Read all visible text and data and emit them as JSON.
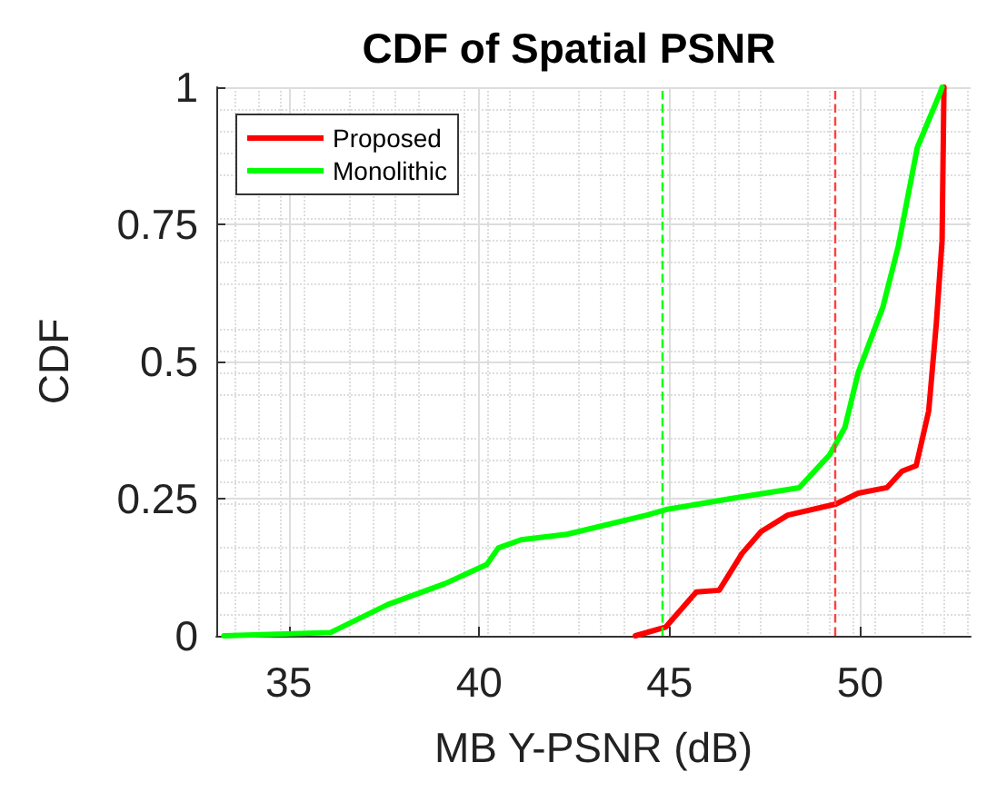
{
  "chart_data": {
    "type": "line",
    "title": "CDF of Spatial PSNR",
    "xlabel": "MB Y-PSNR (dB)",
    "ylabel": "CDF",
    "xlim": [
      33.1,
      52.9
    ],
    "ylim": [
      0,
      1
    ],
    "xticks": [
      35,
      40,
      45,
      50
    ],
    "yticks": [
      0,
      0.25,
      0.5,
      0.75,
      1
    ],
    "grid": true,
    "legend": "top left",
    "line_style": "solid",
    "series": [
      {
        "name": "Proposed",
        "color": "#ff0000",
        "x": [
          44.1,
          44.9,
          45.7,
          46.3,
          46.9,
          47.4,
          48.1,
          49.36,
          49.95,
          50.7,
          51.1,
          51.47,
          51.8,
          52.0,
          52.15,
          52.2
        ],
        "values": [
          0,
          0.016,
          0.08,
          0.083,
          0.15,
          0.19,
          0.22,
          0.24,
          0.26,
          0.27,
          0.3,
          0.31,
          0.41,
          0.57,
          0.72,
          1
        ]
      },
      {
        "name": "Monolithic",
        "color": "#00ff00",
        "x": [
          33.3,
          36.1,
          37.6,
          39.1,
          40.2,
          40.5,
          41.1,
          42.3,
          42.6,
          44.4,
          44.9,
          46.6,
          48.4,
          49.2,
          49.6,
          49.95,
          50.6,
          51.0,
          51.5,
          52.1,
          52.15
        ],
        "values": [
          0,
          0.006,
          0.057,
          0.095,
          0.13,
          0.16,
          0.175,
          0.185,
          0.19,
          0.22,
          0.23,
          0.25,
          0.27,
          0.33,
          0.38,
          0.48,
          0.6,
          0.71,
          0.89,
          0.99,
          1
        ]
      }
    ],
    "ref_lines": [
      {
        "axis": "x",
        "value": 44.8,
        "color": "#00ff00",
        "line_style": "dashed"
      },
      {
        "axis": "x",
        "value": 49.35,
        "color": "#ff4040",
        "line_style": "dashed"
      }
    ]
  }
}
